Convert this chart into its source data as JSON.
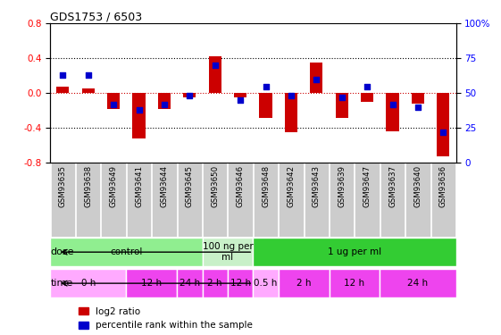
{
  "title": "GDS1753 / 6503",
  "samples": [
    "GSM93635",
    "GSM93638",
    "GSM93649",
    "GSM93641",
    "GSM93644",
    "GSM93645",
    "GSM93650",
    "GSM93646",
    "GSM93648",
    "GSM93642",
    "GSM93643",
    "GSM93639",
    "GSM93647",
    "GSM93637",
    "GSM93640",
    "GSM93636"
  ],
  "log2_ratio": [
    0.08,
    0.05,
    -0.18,
    -0.52,
    -0.18,
    -0.05,
    0.42,
    -0.05,
    -0.28,
    -0.45,
    0.35,
    -0.28,
    -0.1,
    -0.44,
    -0.12,
    -0.72
  ],
  "pct_rank": [
    63,
    63,
    42,
    38,
    42,
    48,
    70,
    45,
    55,
    48,
    60,
    47,
    55,
    42,
    40,
    22
  ],
  "ylim_left": [
    -0.8,
    0.8
  ],
  "ylim_right": [
    0,
    100
  ],
  "yticks_left": [
    -0.8,
    -0.4,
    0.0,
    0.4,
    0.8
  ],
  "yticks_right": [
    0,
    25,
    50,
    75,
    100
  ],
  "dose_groups": [
    {
      "label": "control",
      "start": 0,
      "end": 6,
      "color": "#90ee90"
    },
    {
      "label": "100 ng per\nml",
      "start": 6,
      "end": 8,
      "color": "#c8f0c8"
    },
    {
      "label": "1 ug per ml",
      "start": 8,
      "end": 16,
      "color": "#33cc33"
    }
  ],
  "time_groups": [
    {
      "label": "0 h",
      "start": 0,
      "end": 3,
      "color": "#ffaaff"
    },
    {
      "label": "12 h",
      "start": 3,
      "end": 5,
      "color": "#ee44ee"
    },
    {
      "label": "24 h",
      "start": 5,
      "end": 6,
      "color": "#ee44ee"
    },
    {
      "label": "2 h",
      "start": 6,
      "end": 7,
      "color": "#ee44ee"
    },
    {
      "label": "12 h",
      "start": 7,
      "end": 8,
      "color": "#ee44ee"
    },
    {
      "label": "0.5 h",
      "start": 8,
      "end": 9,
      "color": "#ffaaff"
    },
    {
      "label": "2 h",
      "start": 9,
      "end": 11,
      "color": "#ee44ee"
    },
    {
      "label": "12 h",
      "start": 11,
      "end": 13,
      "color": "#ee44ee"
    },
    {
      "label": "24 h",
      "start": 13,
      "end": 16,
      "color": "#ee44ee"
    }
  ],
  "bar_color_red": "#cc0000",
  "bar_color_blue": "#0000cc",
  "dot_size": 30,
  "bar_width": 0.5,
  "grid_color": "#aaaaaa",
  "zero_line_color": "#cc0000",
  "bg_plot": "#ffffff",
  "bg_xtick": "#cccccc"
}
